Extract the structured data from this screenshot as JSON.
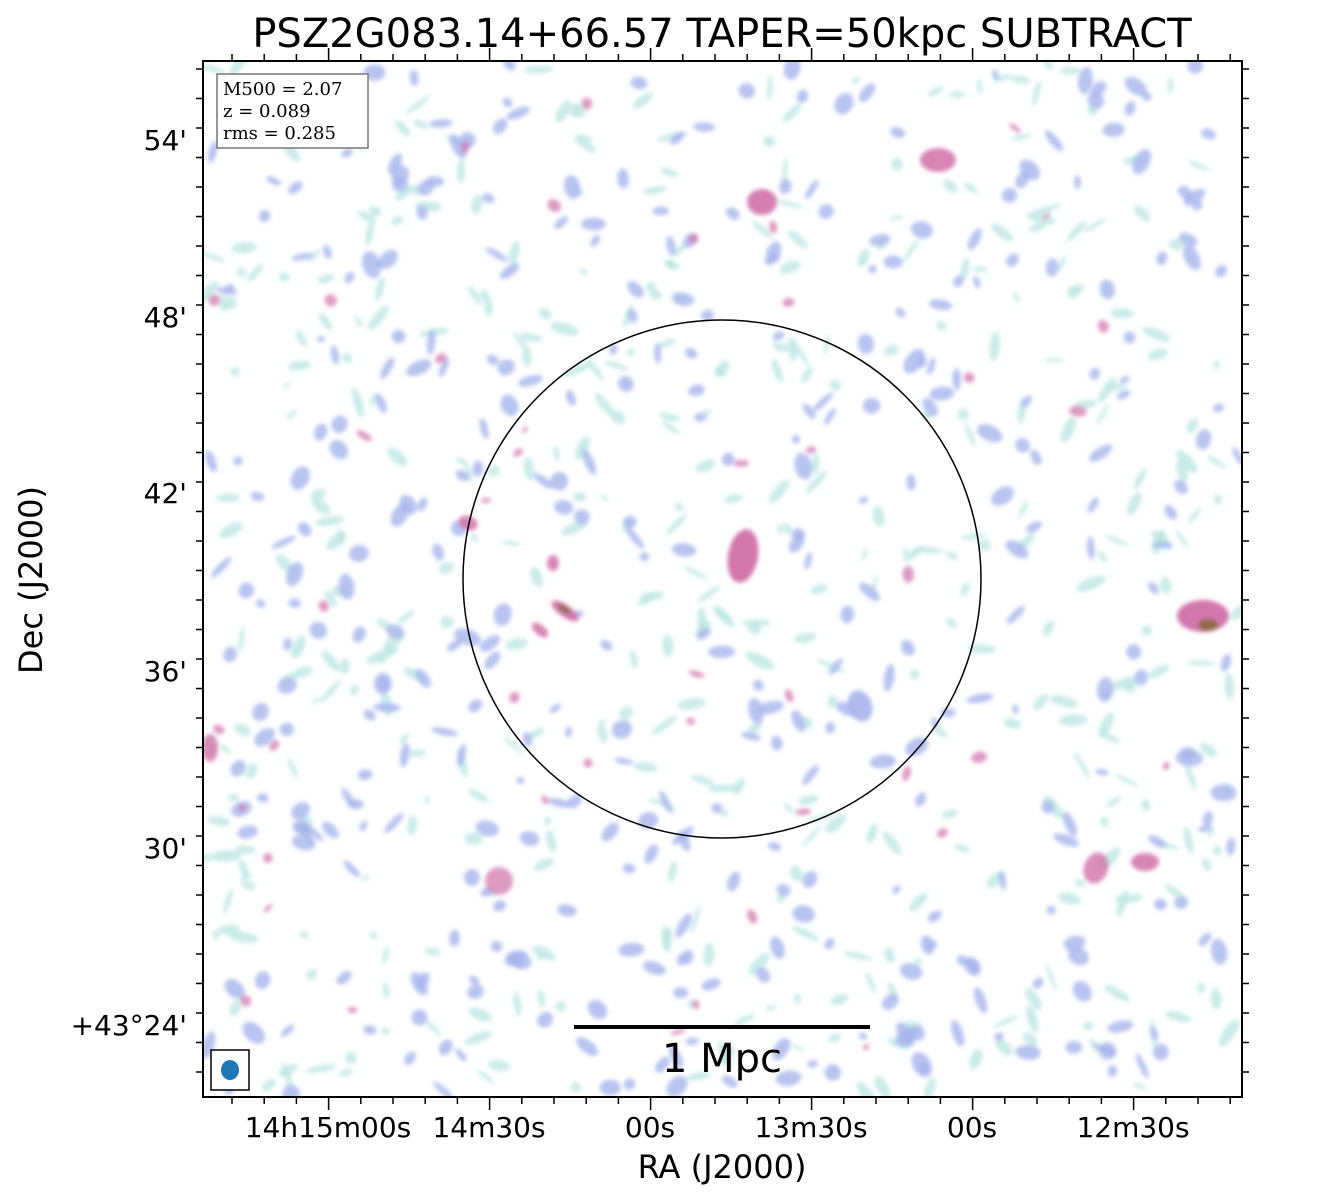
{
  "chart_data": {
    "type": "heatmap",
    "title": "PSZ2G083.14+66.57 TAPER=50kpc SUBTRACT",
    "xlabel": "RA (J2000)",
    "ylabel": "Dec (J2000)",
    "x_ticks": [
      "14h15m00s",
      "14m30s",
      "00s",
      "13m30s",
      "00s",
      "12m30s"
    ],
    "y_ticks": [
      "+43°24'",
      "30'",
      "36'",
      "42'",
      "48'",
      "54'"
    ],
    "info_box": [
      "M500 = 2.07",
      "z = 0.089",
      "rms = 0.285"
    ],
    "scale_bar_label": "1 Mpc",
    "colors": {
      "low": "#b8e4e0",
      "mid": "#a8b4ec",
      "high": "#d070a8",
      "peak": "#8a6a3a",
      "beam": "#1f77b4",
      "circle": "#000000"
    }
  }
}
